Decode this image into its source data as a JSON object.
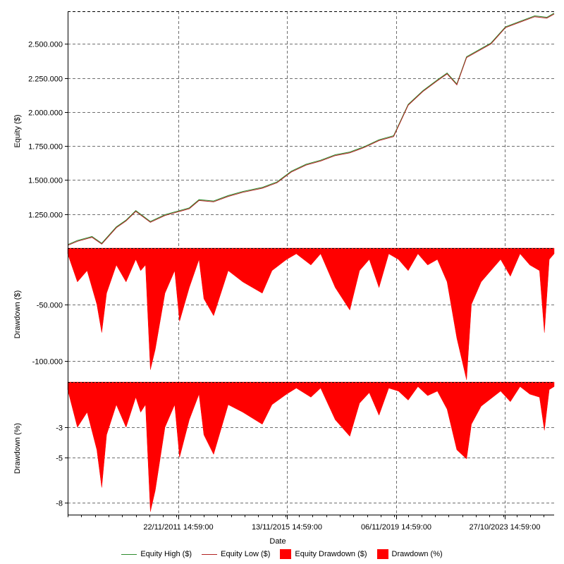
{
  "chart_data": {
    "type": "line",
    "xlabel": "Date",
    "x_ticks": [
      "22/11/2011 14:59:00",
      "13/11/2015 14:59:00",
      "06/11/2019 14:59:00",
      "27/10/2023 14:59:00"
    ],
    "grid": true,
    "legend_position": "bottom-center",
    "panels": [
      {
        "id": "equity",
        "ylabel": "Equity ($)",
        "y_ticks": [
          "1.250.000",
          "1.500.000",
          "1.750.000",
          "2.000.000",
          "2.250.000",
          "2.500.000"
        ],
        "y_tick_values": [
          1250000,
          1500000,
          1750000,
          2000000,
          2250000,
          2500000
        ],
        "ylim": [
          1000000,
          2740000
        ],
        "series": [
          {
            "name": "Equity High ($)",
            "color": "#2e8b2e"
          },
          {
            "name": "Equity Low ($)",
            "color": "#b22222"
          }
        ],
        "x_frac": [
          0.0,
          0.02,
          0.05,
          0.07,
          0.1,
          0.12,
          0.14,
          0.17,
          0.2,
          0.22,
          0.25,
          0.27,
          0.3,
          0.33,
          0.36,
          0.4,
          0.43,
          0.46,
          0.49,
          0.52,
          0.55,
          0.58,
          0.61,
          0.64,
          0.67,
          0.7,
          0.73,
          0.76,
          0.78,
          0.8,
          0.82,
          0.84,
          0.87,
          0.9,
          0.93,
          0.96,
          0.985,
          1.0
        ],
        "values": [
          1020000,
          1050000,
          1080000,
          1030000,
          1150000,
          1200000,
          1270000,
          1190000,
          1240000,
          1260000,
          1290000,
          1350000,
          1340000,
          1380000,
          1410000,
          1440000,
          1480000,
          1560000,
          1610000,
          1640000,
          1680000,
          1700000,
          1740000,
          1790000,
          1820000,
          2050000,
          2150000,
          2230000,
          2280000,
          2200000,
          2400000,
          2440000,
          2500000,
          2620000,
          2660000,
          2700000,
          2690000,
          2720000
        ]
      },
      {
        "id": "equity-drawdown",
        "ylabel": "Drawdown ($)",
        "y_ticks": [
          "-50.000",
          "-100.000"
        ],
        "y_tick_values": [
          -50000,
          -100000
        ],
        "ylim": [
          -119000,
          0
        ],
        "series": [
          {
            "name": "Equity Drawdown ($)",
            "color": "#ff0000"
          }
        ],
        "x_frac": [
          0.0,
          0.02,
          0.04,
          0.06,
          0.07,
          0.08,
          0.1,
          0.12,
          0.14,
          0.15,
          0.16,
          0.17,
          0.18,
          0.2,
          0.22,
          0.23,
          0.25,
          0.27,
          0.28,
          0.3,
          0.33,
          0.36,
          0.4,
          0.42,
          0.45,
          0.47,
          0.5,
          0.52,
          0.55,
          0.58,
          0.6,
          0.62,
          0.64,
          0.66,
          0.68,
          0.7,
          0.72,
          0.74,
          0.76,
          0.78,
          0.8,
          0.82,
          0.83,
          0.85,
          0.87,
          0.89,
          0.91,
          0.93,
          0.95,
          0.97,
          0.98,
          0.99,
          1.0
        ],
        "values": [
          -5000,
          -30000,
          -20000,
          -50000,
          -75000,
          -40000,
          -15000,
          -30000,
          -10000,
          -20000,
          -15000,
          -108000,
          -90000,
          -40000,
          -20000,
          -65000,
          -35000,
          -10000,
          -45000,
          -60000,
          -20000,
          -30000,
          -40000,
          -20000,
          -10000,
          -5000,
          -15000,
          -5000,
          -35000,
          -55000,
          -20000,
          -10000,
          -35000,
          -5000,
          -10000,
          -20000,
          -5000,
          -15000,
          -10000,
          -30000,
          -80000,
          -117000,
          -50000,
          -30000,
          -20000,
          -10000,
          -25000,
          -5000,
          -15000,
          -20000,
          -75000,
          -10000,
          -5000
        ]
      },
      {
        "id": "percent-drawdown",
        "ylabel": "Drawdown (%)",
        "y_ticks": [
          "-3",
          "-5",
          "-8"
        ],
        "y_tick_values": [
          -3,
          -5,
          -8
        ],
        "ylim": [
          -8.8,
          0
        ],
        "series": [
          {
            "name": "Drawdown (%)",
            "color": "#ff0000"
          }
        ],
        "x_frac": [
          0.0,
          0.02,
          0.04,
          0.06,
          0.07,
          0.08,
          0.1,
          0.12,
          0.14,
          0.15,
          0.16,
          0.17,
          0.18,
          0.2,
          0.22,
          0.23,
          0.25,
          0.27,
          0.28,
          0.3,
          0.33,
          0.36,
          0.4,
          0.42,
          0.45,
          0.47,
          0.5,
          0.52,
          0.55,
          0.58,
          0.6,
          0.62,
          0.64,
          0.66,
          0.68,
          0.7,
          0.72,
          0.74,
          0.76,
          0.78,
          0.8,
          0.82,
          0.83,
          0.85,
          0.87,
          0.89,
          0.91,
          0.93,
          0.95,
          0.97,
          0.98,
          0.99,
          1.0
        ],
        "values": [
          -0.5,
          -3.0,
          -2.0,
          -4.5,
          -7.0,
          -3.5,
          -1.5,
          -3.0,
          -1.0,
          -2.0,
          -1.5,
          -8.6,
          -7.2,
          -3.0,
          -1.5,
          -5.0,
          -2.5,
          -0.8,
          -3.5,
          -4.8,
          -1.5,
          -2.0,
          -2.8,
          -1.5,
          -0.8,
          -0.4,
          -1.0,
          -0.4,
          -2.5,
          -3.6,
          -1.4,
          -0.7,
          -2.2,
          -0.4,
          -0.6,
          -1.2,
          -0.3,
          -0.9,
          -0.6,
          -1.8,
          -4.5,
          -5.1,
          -2.8,
          -1.6,
          -1.1,
          -0.6,
          -1.3,
          -0.3,
          -0.8,
          -1.0,
          -3.2,
          -0.5,
          -0.3
        ]
      }
    ]
  }
}
